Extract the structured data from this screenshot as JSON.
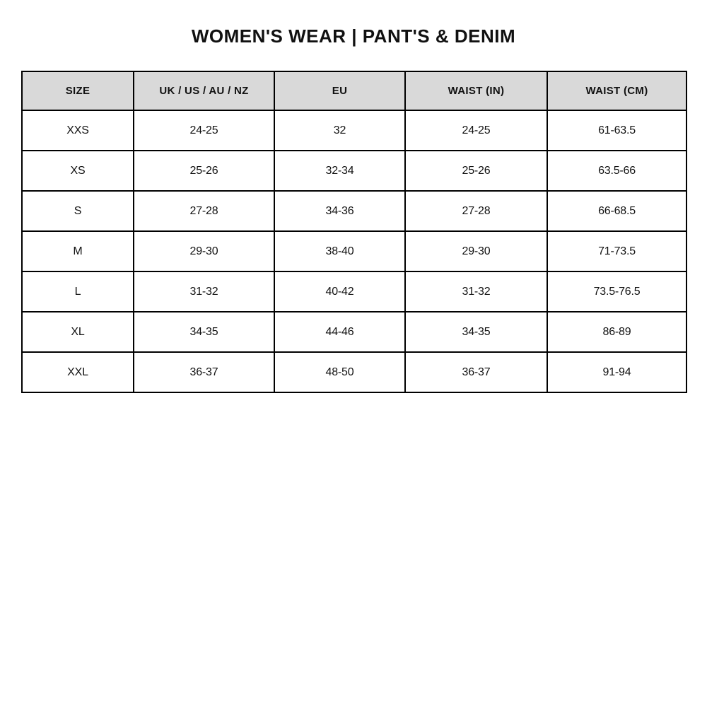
{
  "page": {
    "title": "WOMEN'S WEAR | PANT'S & DENIM"
  },
  "colors": {
    "header_bg": "#d9d9d9",
    "border": "#000000",
    "text": "#111111",
    "page_bg": "#ffffff"
  },
  "table": {
    "headers": [
      "SIZE",
      "UK / US / AU / NZ",
      "EU",
      "WAIST (IN)",
      "WAIST (CM)"
    ],
    "rows": [
      [
        "XXS",
        "24-25",
        "32",
        "24-25",
        "61-63.5"
      ],
      [
        "XS",
        "25-26",
        "32-34",
        "25-26",
        "63.5-66"
      ],
      [
        "S",
        "27-28",
        "34-36",
        "27-28",
        "66-68.5"
      ],
      [
        "M",
        "29-30",
        "38-40",
        "29-30",
        "71-73.5"
      ],
      [
        "L",
        "31-32",
        "40-42",
        "31-32",
        "73.5-76.5"
      ],
      [
        "XL",
        "34-35",
        "44-46",
        "34-35",
        "86-89"
      ],
      [
        "XXL",
        "36-37",
        "48-50",
        "36-37",
        "91-94"
      ]
    ]
  }
}
